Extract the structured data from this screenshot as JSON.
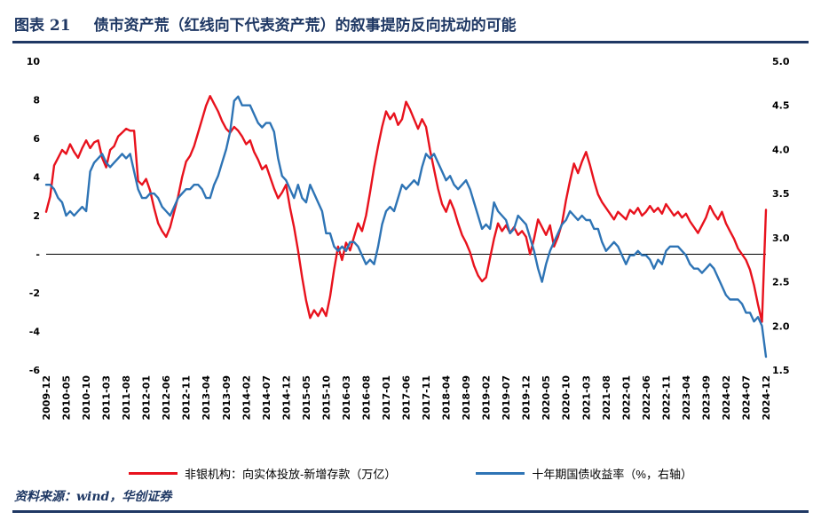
{
  "page": {
    "title_prefix": "图表 21",
    "title_text": "债市资产荒（红线向下代表资产荒）的叙事提防反向扰动的可能",
    "source": "资料来源：wind，华创证券",
    "accent_color": "#1f3864"
  },
  "legend": {
    "items": [
      {
        "label": "非银机构：向实体投放-新增存款（万亿）",
        "color": "#e8121d"
      },
      {
        "label": "十年期国债收益率（%，右轴）",
        "color": "#2e74b5"
      }
    ]
  },
  "chart_data": {
    "type": "line",
    "title": "债市资产荒（红线向下代表资产荒）的叙事提防反向扰动的可能",
    "x": {
      "start": "2009-12",
      "end": "2024-12",
      "freq": "monthly",
      "tick_every": 5,
      "tick_labels": [
        "2009-12",
        "2010-05",
        "2010-10",
        "2011-03",
        "2011-08",
        "2012-01",
        "2012-06",
        "2012-11",
        "2013-04",
        "2013-09",
        "2014-02",
        "2014-07",
        "2014-12",
        "2015-05",
        "2015-10",
        "2016-03",
        "2016-08",
        "2017-01",
        "2017-06",
        "2017-11",
        "2018-04",
        "2018-09",
        "2019-02",
        "2019-07",
        "2019-12",
        "2020-05",
        "2020-10",
        "2021-03",
        "2021-08",
        "2022-01",
        "2022-06",
        "2022-11",
        "2023-04",
        "2023-09",
        "2024-02",
        "2024-07",
        "2024-12"
      ]
    },
    "left_axis": {
      "min": -6,
      "max": 10,
      "ticks": [
        [
          10,
          "10"
        ],
        [
          8,
          "8"
        ],
        [
          6,
          "6"
        ],
        [
          4,
          "4"
        ],
        [
          2,
          "2"
        ],
        [
          0,
          "-"
        ],
        [
          -2,
          "-2"
        ],
        [
          -4,
          "-4"
        ],
        [
          -6,
          "-6"
        ]
      ]
    },
    "right_axis": {
      "min": 1.5,
      "max": 5.0,
      "ticks": [
        [
          5.0,
          "5.0"
        ],
        [
          4.5,
          "4.5"
        ],
        [
          4.0,
          "4.0"
        ],
        [
          3.5,
          "3.5"
        ],
        [
          3.0,
          "3.0"
        ],
        [
          2.5,
          "2.5"
        ],
        [
          2.0,
          "2.0"
        ],
        [
          1.5,
          "1.5"
        ]
      ]
    },
    "zero_line": true,
    "grid": false,
    "legend_position": "bottom",
    "series": [
      {
        "name": "非银机构：向实体投放-新增存款（万亿）",
        "axis": "left",
        "color": "#e8121d",
        "values": [
          2.2,
          3.0,
          4.6,
          5.0,
          5.4,
          5.2,
          5.7,
          5.3,
          5.0,
          5.5,
          5.9,
          5.5,
          5.8,
          5.9,
          5.0,
          4.5,
          5.4,
          5.6,
          6.1,
          6.3,
          6.5,
          6.4,
          6.4,
          3.8,
          3.6,
          3.9,
          3.3,
          2.4,
          1.6,
          1.2,
          0.9,
          1.4,
          2.2,
          3.0,
          4.0,
          4.8,
          5.1,
          5.6,
          6.3,
          7.0,
          7.7,
          8.2,
          7.8,
          7.4,
          6.9,
          6.5,
          6.3,
          6.6,
          6.4,
          6.1,
          5.7,
          5.9,
          5.3,
          4.9,
          4.4,
          4.6,
          4.0,
          3.4,
          2.9,
          3.2,
          3.6,
          2.4,
          1.4,
          0.2,
          -1.2,
          -2.4,
          -3.3,
          -2.9,
          -3.2,
          -2.8,
          -3.2,
          -2.2,
          -0.8,
          0.4,
          -0.3,
          0.6,
          0.2,
          0.9,
          1.6,
          1.2,
          2.0,
          3.2,
          4.5,
          5.6,
          6.6,
          7.4,
          7.0,
          7.3,
          6.7,
          7.0,
          7.9,
          7.5,
          7.0,
          6.5,
          7.0,
          6.6,
          5.4,
          4.4,
          3.4,
          2.6,
          2.2,
          2.8,
          2.3,
          1.6,
          1.0,
          0.6,
          0.1,
          -0.6,
          -1.1,
          -1.4,
          -1.2,
          -0.2,
          0.8,
          1.6,
          1.2,
          1.5,
          1.1,
          1.4,
          1.0,
          1.2,
          0.9,
          0.0,
          0.8,
          1.8,
          1.4,
          1.0,
          1.5,
          0.4,
          0.9,
          1.6,
          2.8,
          3.8,
          4.7,
          4.2,
          4.8,
          5.3,
          4.6,
          3.8,
          3.1,
          2.7,
          2.4,
          2.1,
          1.8,
          2.2,
          2.0,
          1.8,
          2.3,
          2.1,
          2.4,
          2.0,
          2.2,
          2.5,
          2.2,
          2.4,
          2.1,
          2.6,
          2.3,
          2.0,
          2.2,
          1.9,
          2.1,
          1.7,
          1.4,
          1.1,
          1.5,
          1.9,
          2.5,
          2.1,
          1.8,
          2.2,
          1.6,
          1.2,
          0.8,
          0.3,
          0.0,
          -0.3,
          -0.8,
          -1.6,
          -2.6,
          -3.5,
          2.3
        ]
      },
      {
        "name": "十年期国债收益率（%，右轴）",
        "axis": "right",
        "color": "#2e74b5",
        "values": [
          3.6,
          3.6,
          3.55,
          3.45,
          3.4,
          3.25,
          3.3,
          3.25,
          3.3,
          3.35,
          3.3,
          3.75,
          3.85,
          3.9,
          3.95,
          3.85,
          3.8,
          3.85,
          3.9,
          3.95,
          3.9,
          3.95,
          3.75,
          3.55,
          3.45,
          3.45,
          3.5,
          3.5,
          3.45,
          3.35,
          3.3,
          3.25,
          3.35,
          3.45,
          3.5,
          3.55,
          3.55,
          3.6,
          3.6,
          3.55,
          3.45,
          3.45,
          3.6,
          3.7,
          3.85,
          4.0,
          4.2,
          4.55,
          4.6,
          4.5,
          4.5,
          4.5,
          4.4,
          4.3,
          4.25,
          4.3,
          4.3,
          4.2,
          3.9,
          3.7,
          3.65,
          3.55,
          3.45,
          3.6,
          3.45,
          3.4,
          3.6,
          3.5,
          3.4,
          3.3,
          3.05,
          3.05,
          2.9,
          2.85,
          2.9,
          2.85,
          2.95,
          2.95,
          2.9,
          2.8,
          2.7,
          2.75,
          2.7,
          2.9,
          3.15,
          3.3,
          3.35,
          3.3,
          3.45,
          3.6,
          3.55,
          3.6,
          3.65,
          3.6,
          3.8,
          3.95,
          3.9,
          3.95,
          3.85,
          3.75,
          3.65,
          3.7,
          3.6,
          3.55,
          3.6,
          3.65,
          3.55,
          3.4,
          3.25,
          3.1,
          3.15,
          3.1,
          3.4,
          3.3,
          3.25,
          3.2,
          3.05,
          3.1,
          3.25,
          3.2,
          3.15,
          3.0,
          2.85,
          2.65,
          2.5,
          2.7,
          2.85,
          2.95,
          3.05,
          3.15,
          3.2,
          3.3,
          3.25,
          3.2,
          3.25,
          3.2,
          3.2,
          3.1,
          3.1,
          2.95,
          2.85,
          2.9,
          2.95,
          2.9,
          2.8,
          2.7,
          2.8,
          2.8,
          2.85,
          2.8,
          2.8,
          2.75,
          2.65,
          2.75,
          2.7,
          2.85,
          2.9,
          2.9,
          2.9,
          2.85,
          2.8,
          2.7,
          2.65,
          2.65,
          2.6,
          2.65,
          2.7,
          2.65,
          2.55,
          2.45,
          2.35,
          2.3,
          2.3,
          2.3,
          2.25,
          2.15,
          2.15,
          2.05,
          2.1,
          2.0,
          1.65
        ]
      }
    ]
  }
}
